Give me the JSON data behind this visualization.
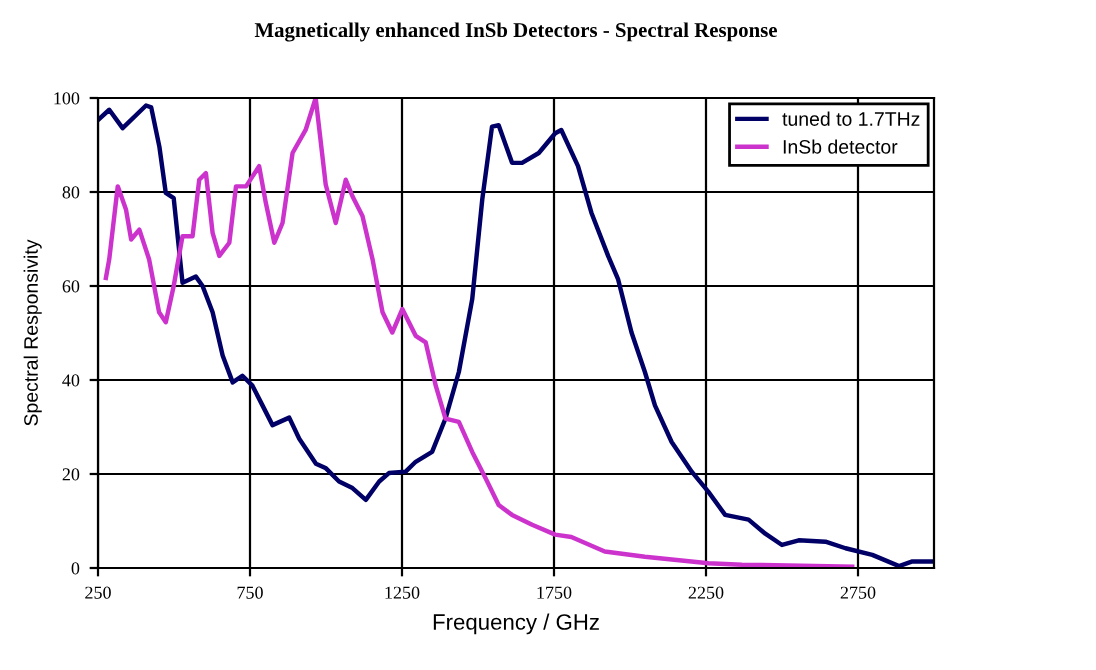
{
  "chart_data": {
    "type": "line",
    "title": "Magnetically enhanced InSb Detectors - Spectral Response",
    "xlabel": "Frequency / GHz",
    "ylabel": "Spectral Responsivity",
    "xlim": [
      250,
      3000
    ],
    "xticks": [
      250,
      750,
      1250,
      1750,
      2250,
      2750
    ],
    "ylim": [
      0,
      100
    ],
    "yticks": [
      0,
      20,
      40,
      60,
      80,
      100
    ],
    "grid": true,
    "legend": "top right",
    "marker": "none",
    "line_style": "solid",
    "series": [
      {
        "name": "tuned to 1.7THz",
        "color": "#000066",
        "x": [
          250,
          287,
          331,
          408,
          425,
          452,
          473,
          499,
          528,
          572,
          594,
          627,
          660,
          693,
          725,
          758,
          791,
          824,
          879,
          912,
          967,
          1000,
          1043,
          1087,
          1131,
          1175,
          1207,
          1262,
          1295,
          1349,
          1393,
          1437,
          1481,
          1514,
          1546,
          1568,
          1612,
          1645,
          1700,
          1754,
          1774,
          1829,
          1873,
          1928,
          1961,
          2005,
          2049,
          2082,
          2137,
          2203,
          2258,
          2313,
          2390,
          2445,
          2500,
          2555,
          2643,
          2709,
          2797,
          2885,
          2929,
          2995
        ],
        "values": [
          95.3,
          97.5,
          93.6,
          98.4,
          98,
          89.6,
          79.8,
          78.7,
          60.7,
          62,
          60,
          54.4,
          45.2,
          39.5,
          40.9,
          38.8,
          34.6,
          30.4,
          32,
          27.5,
          22.2,
          21.2,
          18.4,
          17,
          14.5,
          18.4,
          20.2,
          20.5,
          22.6,
          24.7,
          31.8,
          41.7,
          57.2,
          78.4,
          93.9,
          94.2,
          86.2,
          86.2,
          88.3,
          92.5,
          93.2,
          85.5,
          75.6,
          66.4,
          61.4,
          50.1,
          41.7,
          34.6,
          26.8,
          20.5,
          16.2,
          11.3,
          10.3,
          7.3,
          4.9,
          5.9,
          5.6,
          4.2,
          2.8,
          0.4,
          1.4,
          1.4
        ]
      },
      {
        "name": "InSb detector",
        "color": "#cc33cc",
        "x": [
          276,
          287,
          315,
          342,
          359,
          386,
          418,
          451,
          473,
          499,
          528,
          561,
          583,
          605,
          627,
          649,
          682,
          704,
          737,
          780,
          802,
          830,
          857,
          890,
          933,
          966,
          999,
          1032,
          1065,
          1087,
          1120,
          1153,
          1186,
          1218,
          1251,
          1295,
          1328,
          1361,
          1393,
          1437,
          1481,
          1525,
          1568,
          1612,
          1678,
          1754,
          1807,
          1917,
          2049,
          2258,
          2368,
          2477,
          2731
        ],
        "values": [
          61.7,
          65.7,
          81.2,
          76.3,
          69.9,
          72,
          65.7,
          54.4,
          52.3,
          60,
          70.6,
          70.6,
          82.6,
          84,
          71.3,
          66.4,
          69.2,
          81.2,
          81.2,
          85.5,
          77.7,
          69.2,
          73.4,
          88.3,
          93.2,
          100,
          81.6,
          73.4,
          82.6,
          79.1,
          74.9,
          65.7,
          54.4,
          50.1,
          55.1,
          49.4,
          48,
          38.8,
          31.8,
          31.1,
          24.7,
          19.1,
          13.4,
          11.3,
          9.2,
          7.1,
          6.6,
          3.5,
          2.4,
          1,
          0.7,
          0.6,
          0.3
        ]
      }
    ]
  }
}
